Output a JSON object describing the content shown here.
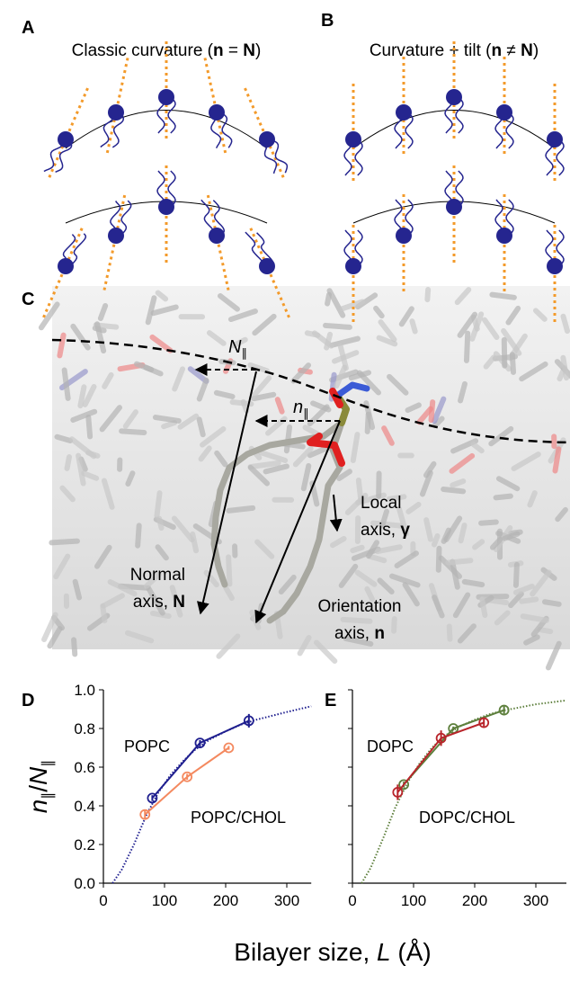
{
  "panel_labels": [
    "A",
    "B",
    "C",
    "D",
    "E"
  ],
  "schematics": [
    {
      "title": [
        "Classic curvature (",
        "n",
        " = ",
        "N",
        ")"
      ]
    },
    {
      "title": [
        "Curvature + tilt (",
        "n",
        " ≠ ",
        "N",
        ")"
      ]
    }
  ],
  "molecule": {
    "N_parallel": [
      "N",
      "∥"
    ],
    "n_parallel": [
      "n",
      "∥"
    ],
    "local_axis": [
      "Local",
      "axis, ",
      "γ"
    ],
    "normal_axis": [
      "Normal",
      "axis, ",
      "N"
    ],
    "orientation_axis": [
      "Orientation",
      "axis, ",
      "n"
    ]
  },
  "xlabel": [
    "Bilayer size, ",
    "L",
    " (Å)"
  ],
  "chart_data": [
    {
      "type": "line",
      "ylabel": [
        "n",
        "∥",
        "/",
        "N",
        "∥"
      ],
      "xlim": [
        0,
        340
      ],
      "xticks": [
        0,
        100,
        200,
        300
      ],
      "ylim": [
        0,
        1
      ],
      "yticks": [
        {
          "value": 0,
          "label": "0.0"
        },
        {
          "value": 0.2,
          "label": "0.2"
        },
        {
          "value": 0.4,
          "label": "0.4"
        },
        {
          "value": 0.6,
          "label": "0.6"
        },
        {
          "value": 0.8,
          "label": "0.8"
        },
        {
          "value": 1,
          "label": "1.0"
        }
      ],
      "series": [
        {
          "color": "#1f1f8f",
          "dotted": true,
          "x": [
            15,
            30,
            50,
            70,
            90,
            110,
            130,
            150,
            175,
            200,
            225,
            250,
            275,
            300,
            340
          ],
          "values": [
            0,
            0.07,
            0.2,
            0.35,
            0.47,
            0.56,
            0.63,
            0.69,
            0.745,
            0.785,
            0.82,
            0.845,
            0.865,
            0.885,
            0.915
          ]
        },
        {
          "name": "POPC",
          "color": "#1f1f8f",
          "x": [
            80,
            158,
            238
          ],
          "values": [
            0.44,
            0.725,
            0.84
          ],
          "errors": [
            0.015,
            0.015,
            0.035
          ]
        },
        {
          "name": "POPC/CHOL",
          "color": "#f4895f",
          "x": [
            68,
            137,
            205
          ],
          "values": [
            0.355,
            0.55,
            0.7
          ],
          "errors": [
            0.02,
            0.015,
            0.01
          ]
        }
      ]
    },
    {
      "type": "line",
      "xlim": [
        0,
        350
      ],
      "xticks": [
        0,
        100,
        200,
        300
      ],
      "ylim": [
        0,
        1
      ],
      "yticks": [
        {
          "value": 0,
          "label": "0.0"
        },
        {
          "value": 0.2,
          "label": "0.2"
        },
        {
          "value": 0.4,
          "label": "0.4"
        },
        {
          "value": 0.6,
          "label": "0.6"
        },
        {
          "value": 0.8,
          "label": "0.8"
        },
        {
          "value": 1,
          "label": "1.0"
        }
      ],
      "series": [
        {
          "color": "#5d7f3c",
          "dotted": true,
          "x": [
            15,
            30,
            50,
            70,
            90,
            110,
            130,
            150,
            175,
            200,
            225,
            250,
            275,
            300,
            350
          ],
          "values": [
            0,
            0.08,
            0.23,
            0.39,
            0.52,
            0.62,
            0.7,
            0.76,
            0.81,
            0.845,
            0.875,
            0.895,
            0.91,
            0.925,
            0.945
          ]
        },
        {
          "name": "DOPC",
          "color": "#5d7f3c",
          "x": [
            84,
            165,
            248
          ],
          "values": [
            0.51,
            0.8,
            0.895
          ],
          "errors": [
            0.015,
            0.01,
            0.02
          ]
        },
        {
          "name": "DOPC/CHOL",
          "color": "#b8242a",
          "x": [
            74,
            145,
            215
          ],
          "values": [
            0.47,
            0.75,
            0.83
          ],
          "errors": [
            0.04,
            0.04,
            0.02
          ]
        }
      ]
    }
  ]
}
